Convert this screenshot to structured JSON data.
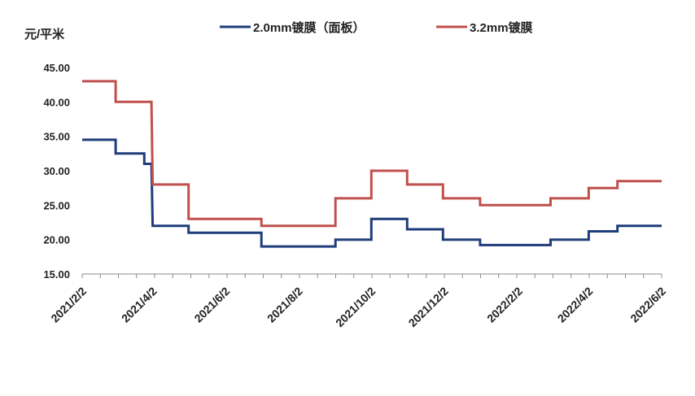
{
  "chart_data": {
    "type": "line",
    "unit_label": "元/平米",
    "title": "",
    "xlabel": "",
    "ylabel": "元/平米",
    "ylim": [
      15,
      45
    ],
    "yticks": [
      "15.00",
      "20.00",
      "25.00",
      "30.00",
      "35.00",
      "40.00",
      "45.00"
    ],
    "xlim": [
      "2021-02-02",
      "2022-06-02"
    ],
    "xticks": [
      {
        "date": "2021-02-02",
        "label": "2021/2/2"
      },
      {
        "date": "2021-04-02",
        "label": "2021/4/2"
      },
      {
        "date": "2021-06-02",
        "label": "2021/6/2"
      },
      {
        "date": "2021-08-02",
        "label": "2021/8/2"
      },
      {
        "date": "2021-10-02",
        "label": "2021/10/2"
      },
      {
        "date": "2021-12-02",
        "label": "2021/12/2"
      },
      {
        "date": "2022-02-02",
        "label": "2022/2/2"
      },
      {
        "date": "2022-04-02",
        "label": "2022/4/2"
      },
      {
        "date": "2022-06-02",
        "label": "2022/6/2"
      }
    ],
    "grid": false,
    "legend_position": "top",
    "series": [
      {
        "name": "2.0mm镀膜（面板）",
        "color": "#1f3d7a",
        "points": [
          [
            "2021-02-02",
            34.5
          ],
          [
            "2021-03-02",
            34.5
          ],
          [
            "2021-03-02",
            32.5
          ],
          [
            "2021-03-26",
            32.5
          ],
          [
            "2021-03-26",
            31.0
          ],
          [
            "2021-04-01",
            31.0
          ],
          [
            "2021-04-02",
            22.0
          ],
          [
            "2021-05-02",
            22.0
          ],
          [
            "2021-05-02",
            21.0
          ],
          [
            "2021-07-02",
            21.0
          ],
          [
            "2021-07-02",
            19.0
          ],
          [
            "2021-09-02",
            19.0
          ],
          [
            "2021-09-02",
            20.0
          ],
          [
            "2021-10-02",
            20.0
          ],
          [
            "2021-10-02",
            23.0
          ],
          [
            "2021-11-01",
            23.0
          ],
          [
            "2021-11-01",
            21.5
          ],
          [
            "2021-12-01",
            21.5
          ],
          [
            "2021-12-01",
            20.0
          ],
          [
            "2022-01-01",
            20.0
          ],
          [
            "2022-01-01",
            19.2
          ],
          [
            "2022-03-01",
            19.2
          ],
          [
            "2022-03-01",
            20.0
          ],
          [
            "2022-04-02",
            20.0
          ],
          [
            "2022-04-02",
            21.2
          ],
          [
            "2022-04-26",
            21.2
          ],
          [
            "2022-04-26",
            22.0
          ],
          [
            "2022-06-02",
            22.0
          ]
        ]
      },
      {
        "name": "3.2mm镀膜",
        "color": "#c0504d",
        "points": [
          [
            "2021-02-02",
            43.0
          ],
          [
            "2021-03-02",
            43.0
          ],
          [
            "2021-03-02",
            40.0
          ],
          [
            "2021-04-01",
            40.0
          ],
          [
            "2021-04-02",
            28.0
          ],
          [
            "2021-05-02",
            28.0
          ],
          [
            "2021-05-02",
            23.0
          ],
          [
            "2021-07-02",
            23.0
          ],
          [
            "2021-07-02",
            22.0
          ],
          [
            "2021-09-02",
            22.0
          ],
          [
            "2021-09-02",
            26.0
          ],
          [
            "2021-10-02",
            26.0
          ],
          [
            "2021-10-02",
            30.0
          ],
          [
            "2021-11-01",
            30.0
          ],
          [
            "2021-11-01",
            28.0
          ],
          [
            "2021-12-01",
            28.0
          ],
          [
            "2021-12-01",
            26.0
          ],
          [
            "2022-01-01",
            26.0
          ],
          [
            "2022-01-01",
            25.0
          ],
          [
            "2022-03-01",
            25.0
          ],
          [
            "2022-03-01",
            26.0
          ],
          [
            "2022-04-02",
            26.0
          ],
          [
            "2022-04-02",
            27.5
          ],
          [
            "2022-04-26",
            27.5
          ],
          [
            "2022-04-26",
            28.5
          ],
          [
            "2022-06-02",
            28.5
          ]
        ]
      }
    ]
  }
}
